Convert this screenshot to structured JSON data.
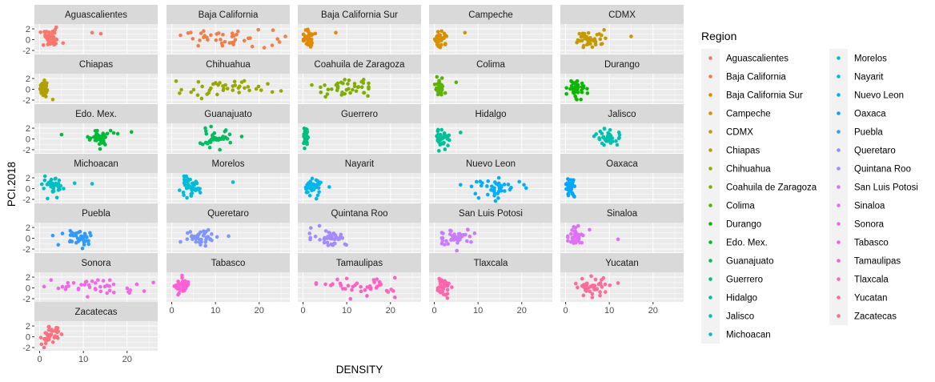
{
  "chart_data": {
    "type": "scatter",
    "faceted": true,
    "xlabel": "DENSITY",
    "ylabel": "PCI.2018",
    "xlim": [
      -1.2,
      27
    ],
    "ylim": [
      -2.6,
      2.9
    ],
    "x_ticks": [
      0,
      10,
      20
    ],
    "y_ticks": [
      -2,
      0,
      2
    ],
    "y_tick_labels": [
      "-2",
      "0",
      "2"
    ],
    "legend": {
      "title": "Region",
      "position": "right",
      "columns": 2
    },
    "facets": [
      {
        "name": "Aguascalientes",
        "color": "#F8766D",
        "x_center": 2.5,
        "x_spread": 1.3,
        "x_range": [
          0.2,
          6
        ],
        "outliers": [
          [
            12,
            1.3
          ],
          [
            14,
            1.1
          ]
        ]
      },
      {
        "name": "Baja California",
        "color": "#EF7F48",
        "x_center": 13,
        "x_spread": 5,
        "x_range": [
          2,
          26
        ],
        "outliers": [
          [
            2,
            0.8
          ],
          [
            26,
            0.6
          ]
        ]
      },
      {
        "name": "Baja California Sur",
        "color": "#E38900",
        "x_center": 1.2,
        "x_spread": 0.6,
        "x_range": [
          0.1,
          3
        ],
        "outliers": [
          [
            7.5,
            1.3
          ]
        ]
      },
      {
        "name": "Campeche",
        "color": "#D59100",
        "x_center": 1.5,
        "x_spread": 0.7,
        "x_range": [
          0.1,
          3.5
        ],
        "outliers": [
          [
            7,
            1.3
          ]
        ]
      },
      {
        "name": "CDMX",
        "color": "#C49A00",
        "x_center": 6,
        "x_spread": 2,
        "x_range": [
          2,
          11
        ],
        "outliers": [
          [
            15,
            0.6
          ]
        ]
      },
      {
        "name": "Chiapas",
        "color": "#B0A100",
        "x_center": 0.8,
        "x_spread": 0.4,
        "x_range": [
          0.1,
          2
        ],
        "outliers": [
          [
            3,
            -1.9
          ]
        ]
      },
      {
        "name": "Chihuahua",
        "color": "#99A800",
        "x_center": 12,
        "x_spread": 5,
        "x_range": [
          1,
          25
        ],
        "outliers": [
          [
            25,
            -0.3
          ],
          [
            23,
            -0.5
          ]
        ]
      },
      {
        "name": "Coahuila de Zaragoza",
        "color": "#7FAE00",
        "x_center": 10,
        "x_spread": 3.5,
        "x_range": [
          1,
          15
        ],
        "outliers": [
          [
            2,
            0.8
          ],
          [
            4,
            0.4
          ]
        ]
      },
      {
        "name": "Colima",
        "color": "#5BB300",
        "x_center": 1.2,
        "x_spread": 0.5,
        "x_range": [
          0.1,
          2.5
        ],
        "outliers": [
          [
            5,
            1.3
          ]
        ]
      },
      {
        "name": "Durango",
        "color": "#0CB702",
        "x_center": 2.5,
        "x_spread": 1,
        "x_range": [
          0.2,
          5
        ],
        "outliers": [
          [
            3.5,
            -1.9
          ]
        ]
      },
      {
        "name": "Edo. Mex.",
        "color": "#00BA38",
        "x_center": 13.5,
        "x_spread": 1.5,
        "x_range": [
          11,
          18
        ],
        "outliers": [
          [
            5,
            0.8
          ],
          [
            21,
            1.3
          ]
        ]
      },
      {
        "name": "Guanajuato",
        "color": "#00BD5F",
        "x_center": 10,
        "x_spread": 2.5,
        "x_range": [
          4,
          16
        ],
        "outliers": [
          [
            11,
            -2.0
          ]
        ]
      },
      {
        "name": "Guerrero",
        "color": "#00BF7D",
        "x_center": 0.6,
        "x_spread": 0.2,
        "x_range": [
          0.1,
          1.2
        ],
        "outliers": []
      },
      {
        "name": "Hidalgo",
        "color": "#00C097",
        "x_center": 2,
        "x_spread": 0.8,
        "x_range": [
          0.2,
          4
        ],
        "outliers": [
          [
            6,
            1.2
          ]
        ]
      },
      {
        "name": "Jalisco",
        "color": "#00C0AF",
        "x_center": 10,
        "x_spread": 1.5,
        "x_range": [
          6,
          13
        ],
        "outliers": [
          [
            7,
            0.9
          ]
        ]
      },
      {
        "name": "Michoacan",
        "color": "#00BFC4",
        "x_center": 3,
        "x_spread": 1.2,
        "x_range": [
          0.5,
          6
        ],
        "outliers": [
          [
            12,
            0.9
          ],
          [
            8,
            1.0
          ]
        ]
      },
      {
        "name": "Morelos",
        "color": "#00BCD8",
        "x_center": 4,
        "x_spread": 1.2,
        "x_range": [
          1.5,
          7
        ],
        "outliers": [
          [
            14,
            1.2
          ]
        ]
      },
      {
        "name": "Nayarit",
        "color": "#00B6EB",
        "x_center": 2,
        "x_spread": 1,
        "x_range": [
          0.3,
          4.5
        ],
        "outliers": [
          [
            6,
            0.3
          ]
        ]
      },
      {
        "name": "Nuevo Leon",
        "color": "#00AFF9",
        "x_center": 15,
        "x_spread": 3,
        "x_range": [
          6,
          21
        ],
        "outliers": [
          [
            6,
            0.7
          ]
        ]
      },
      {
        "name": "Oaxaca",
        "color": "#00A6FF",
        "x_center": 1,
        "x_spread": 0.5,
        "x_range": [
          0.1,
          2.5
        ],
        "outliers": [
          [
            2,
            -1.5
          ]
        ]
      },
      {
        "name": "Puebla",
        "color": "#2E9BFF",
        "x_center": 9,
        "x_spread": 2,
        "x_range": [
          2,
          14
        ],
        "outliers": [
          [
            3,
            0.5
          ]
        ]
      },
      {
        "name": "Queretaro",
        "color": "#7F96FF",
        "x_center": 7,
        "x_spread": 2,
        "x_range": [
          2,
          13
        ],
        "outliers": [
          [
            13,
            0.4
          ]
        ]
      },
      {
        "name": "Quintana Roo",
        "color": "#A58AFF",
        "x_center": 6,
        "x_spread": 2,
        "x_range": [
          1,
          12
        ],
        "outliers": [
          [
            1.5,
            0.9
          ]
        ]
      },
      {
        "name": "San Luis Potosi",
        "color": "#C77CFF",
        "x_center": 5,
        "x_spread": 2,
        "x_range": [
          1,
          10
        ],
        "outliers": [
          [
            2,
            0.9
          ]
        ]
      },
      {
        "name": "Sinaloa",
        "color": "#DF70F8",
        "x_center": 2.5,
        "x_spread": 1.2,
        "x_range": [
          0.5,
          7
        ],
        "outliers": [
          [
            12,
            -0.2
          ]
        ]
      },
      {
        "name": "Sonora",
        "color": "#F067E9",
        "x_center": 13,
        "x_spread": 5,
        "x_range": [
          1,
          27
        ],
        "outliers": [
          [
            26,
            1.0
          ]
        ]
      },
      {
        "name": "Tabasco",
        "color": "#FB61D7",
        "x_center": 2.5,
        "x_spread": 0.8,
        "x_range": [
          0.5,
          5
        ],
        "outliers": [
          [
            1,
            0.5
          ]
        ]
      },
      {
        "name": "Tamaulipas",
        "color": "#FF61C3",
        "x_center": 14,
        "x_spread": 4,
        "x_range": [
          3,
          21
        ],
        "outliers": [
          [
            3,
            0.7
          ]
        ]
      },
      {
        "name": "Tlaxcala",
        "color": "#FF65AC",
        "x_center": 2,
        "x_spread": 0.8,
        "x_range": [
          0.2,
          4
        ],
        "outliers": [
          [
            3,
            -1.9
          ]
        ]
      },
      {
        "name": "Yucatan",
        "color": "#FF6A98",
        "x_center": 6,
        "x_spread": 2,
        "x_range": [
          1,
          12
        ],
        "outliers": [
          [
            12,
            0.9
          ]
        ]
      },
      {
        "name": "Zacatecas",
        "color": "#FC717F",
        "x_center": 2.5,
        "x_spread": 1,
        "x_range": [
          0.2,
          5
        ],
        "outliers": [
          [
            1,
            -2.0
          ]
        ]
      }
    ]
  }
}
